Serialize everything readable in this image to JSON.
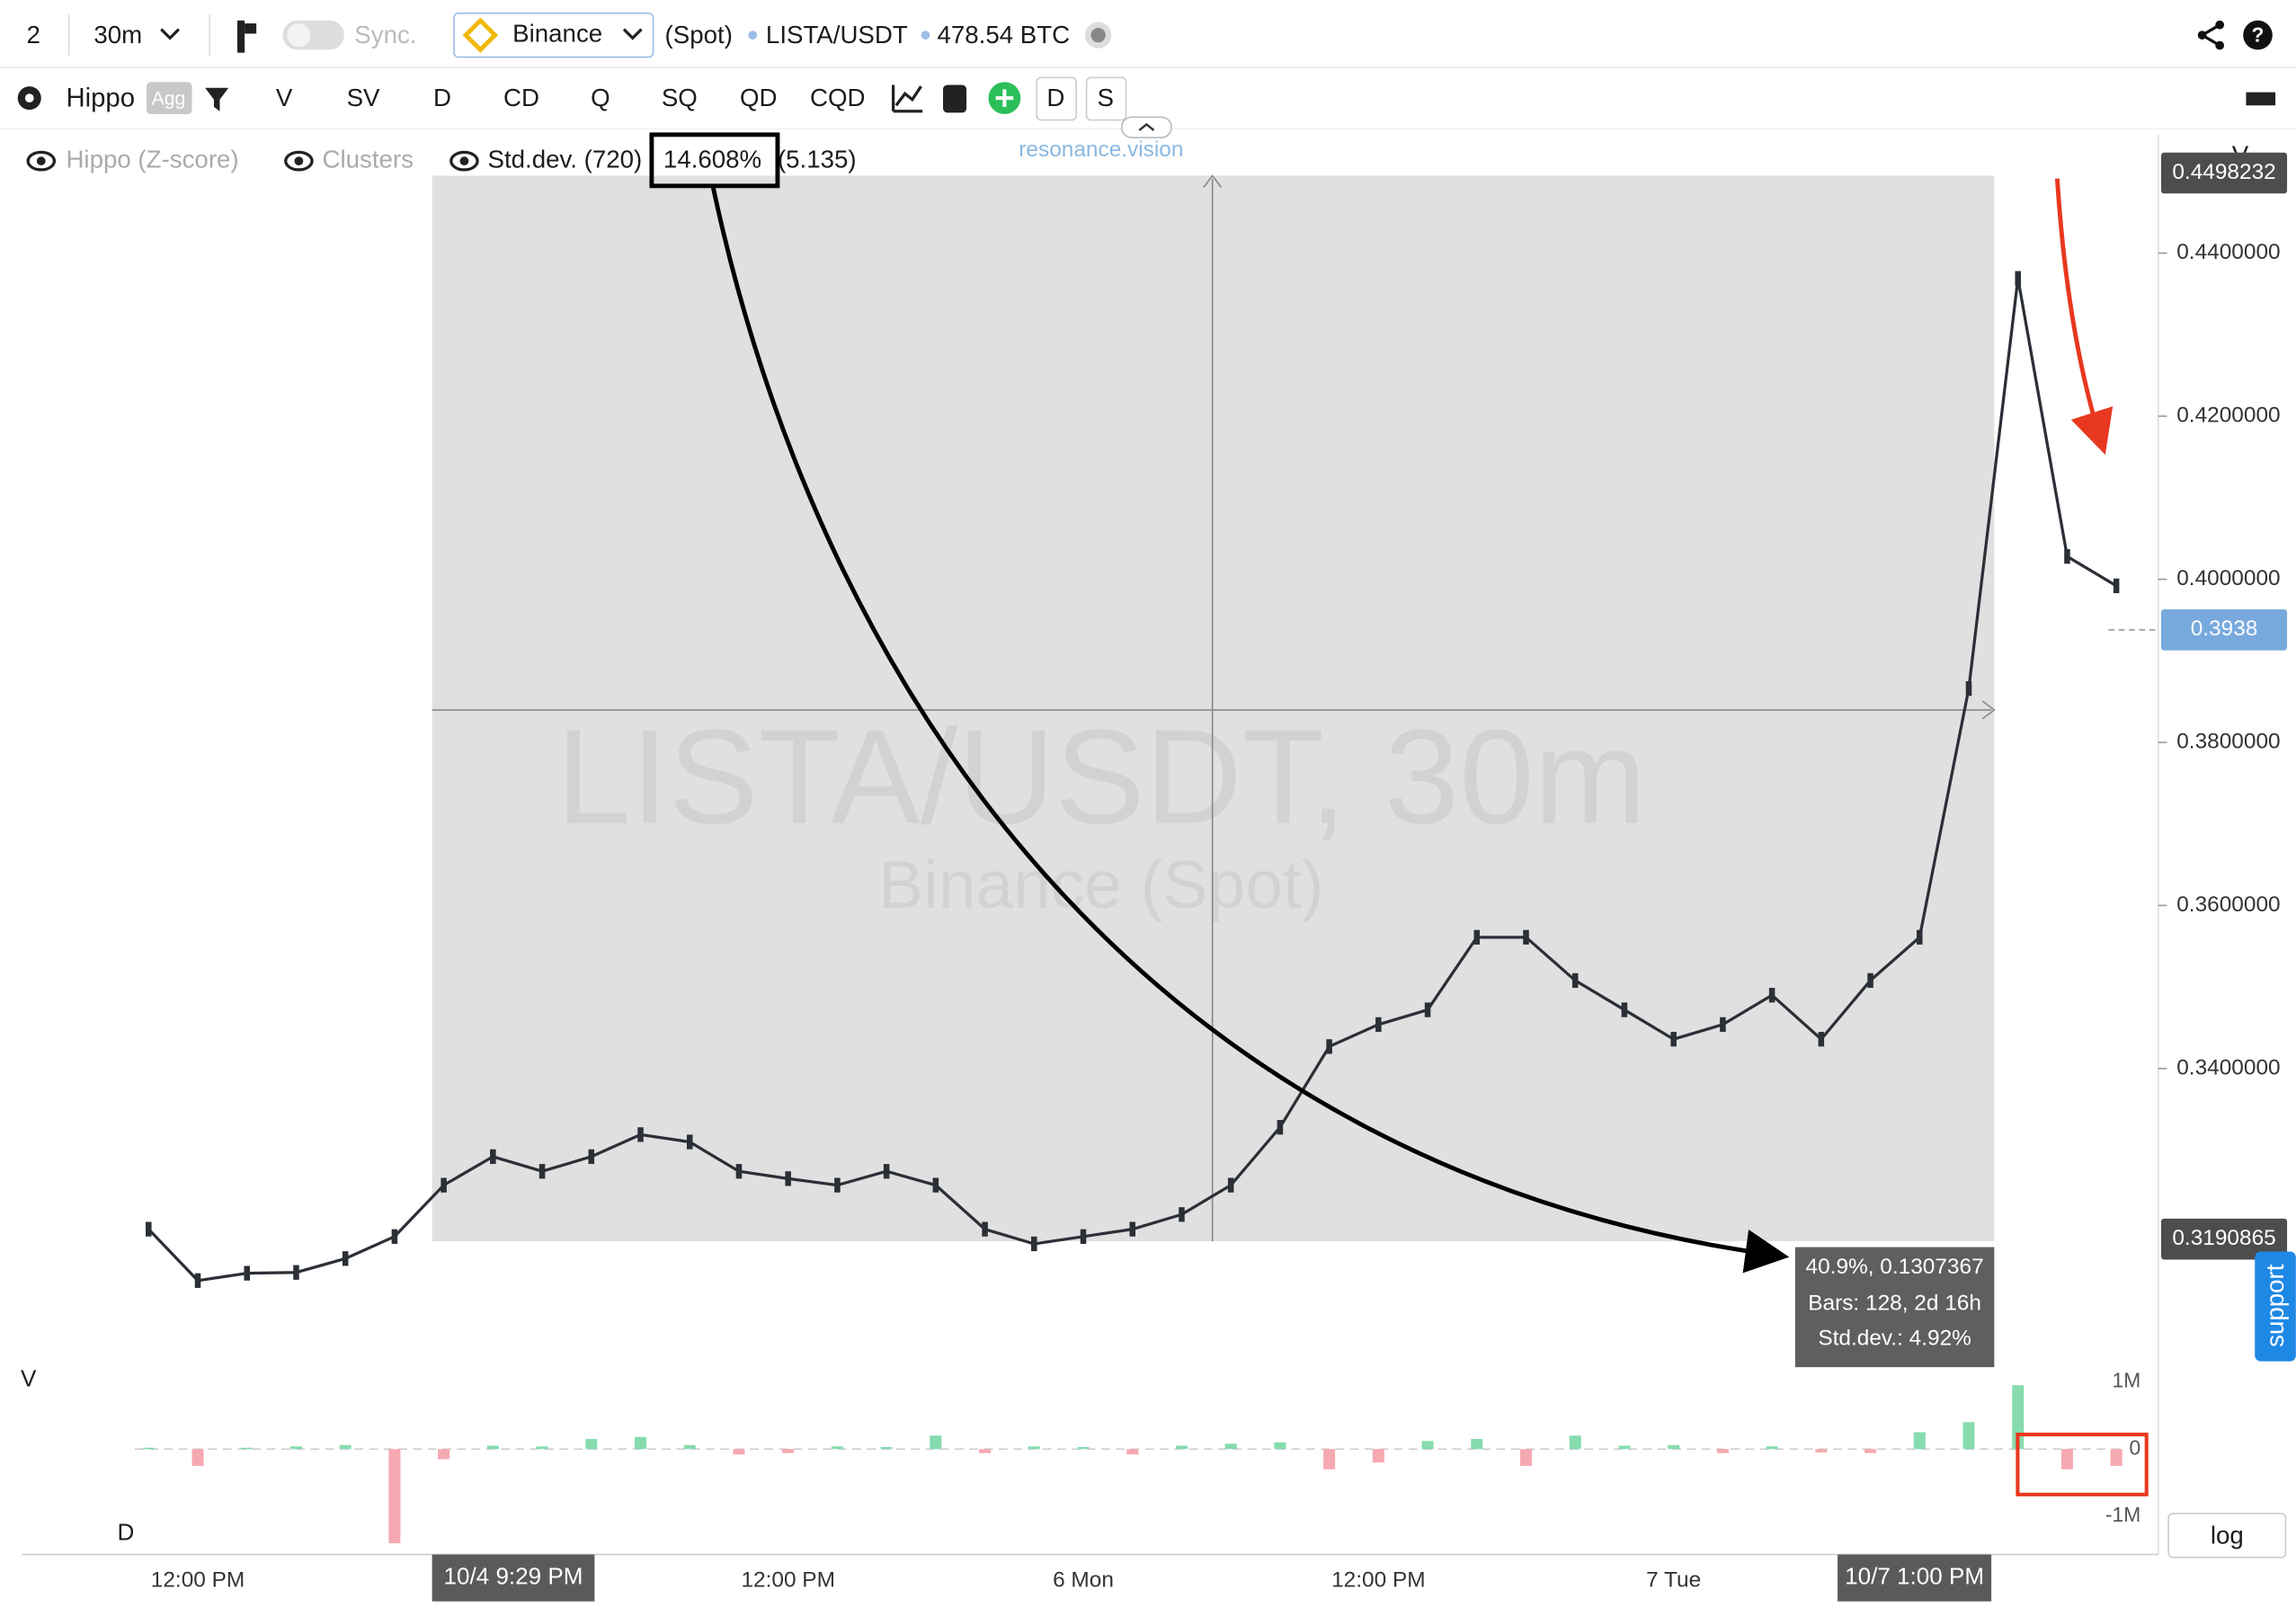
{
  "toolbar": {
    "layout_count": "2",
    "interval": "30m",
    "sync": "Sync.",
    "exchange": "Binance",
    "market": "(Spot)",
    "symbol": "LISTA/USDT",
    "volume": "478.54 BTC"
  },
  "indicator_bar": {
    "name": "Hippo",
    "agg": "Agg",
    "buttons": [
      "V",
      "SV",
      "D",
      "CD",
      "Q",
      "SQ",
      "QD",
      "CQD"
    ],
    "toggles": [
      "D",
      "S"
    ]
  },
  "legend": {
    "items": [
      "Hippo (Z-score)",
      "Clusters",
      "Std.dev. (720)"
    ],
    "std_value": "14.608%",
    "std_extra": "(5.135)",
    "brand": "resonance.vision"
  },
  "watermark": {
    "title": "LISTA/USDT, 30m",
    "subtitle": "Binance (Spot)"
  },
  "measure": {
    "lines": [
      "40.9%, 0.1307367",
      "Bars: 128, 2d 16h",
      "Std.dev.: 4.92%"
    ]
  },
  "crosshair_labels": [
    "10/4 9:29 PM",
    "10/7 1:00 PM"
  ],
  "panel_labels": {
    "price_axis": "V",
    "volume": "V",
    "delta": "D",
    "log": "log",
    "support": "support"
  },
  "chart_data": [
    {
      "type": "line",
      "color": "#2b2f36",
      "categories": [
        null,
        "12:00 PM",
        null,
        null,
        null,
        null,
        null,
        null,
        null,
        null,
        null,
        null,
        null,
        "12:00 PM",
        null,
        null,
        null,
        null,
        null,
        "6 Mon",
        null,
        null,
        null,
        null,
        null,
        "12:00 PM",
        null,
        null,
        null,
        null,
        null,
        "7 Tue",
        null,
        null,
        null,
        null,
        null,
        null,
        null,
        null,
        null
      ],
      "values": [
        0.3203,
        0.314,
        0.3149,
        0.315,
        0.3167,
        0.3194,
        0.3257,
        0.3292,
        0.3274,
        0.3292,
        0.3319,
        0.331,
        0.3274,
        0.3265,
        0.3257,
        0.3274,
        0.3257,
        0.3203,
        0.3185,
        0.3194,
        0.3203,
        0.3221,
        0.3257,
        0.3328,
        0.3427,
        0.3454,
        0.3472,
        0.3561,
        0.3561,
        0.3508,
        0.3472,
        0.3436,
        0.3454,
        0.349,
        0.3436,
        0.3508,
        0.3561,
        0.3866,
        0.4369,
        0.4028,
        0.3992
      ],
      "ylim": [
        0.3041,
        0.4495
      ],
      "yticks": [
        {
          "value": 0.34,
          "label": "0.3400000"
        },
        {
          "value": 0.36,
          "label": "0.3600000"
        },
        {
          "value": 0.38,
          "label": "0.3800000"
        },
        {
          "value": 0.4,
          "label": "0.4000000"
        },
        {
          "value": 0.42,
          "label": "0.4200000"
        },
        {
          "value": 0.44,
          "label": "0.4400000"
        }
      ],
      "price_tags": [
        0.4498232,
        0.3938,
        0.3190865
      ],
      "price_tag_colors": [
        "#4d4d4d",
        "#78a9dd",
        "#4d4d4d"
      ]
    },
    {
      "type": "bar",
      "color_up": "#86dcae",
      "color_down": "#f6a9b1",
      "values": [
        20000,
        -250000,
        20000,
        40000,
        60000,
        -1400000,
        -150000,
        50000,
        40000,
        150000,
        180000,
        60000,
        -80000,
        -60000,
        40000,
        30000,
        200000,
        -60000,
        40000,
        30000,
        -80000,
        50000,
        80000,
        100000,
        -300000,
        -200000,
        120000,
        150000,
        -250000,
        200000,
        50000,
        60000,
        -60000,
        40000,
        -50000,
        -60000,
        250000,
        400000,
        950000,
        -300000,
        -250000
      ],
      "ylim": [
        -1480000,
        1130000
      ],
      "yticks": [
        {
          "value": 1000000,
          "label": "1M"
        },
        0,
        {
          "value": -1000000,
          "label": "-1M"
        }
      ]
    }
  ]
}
